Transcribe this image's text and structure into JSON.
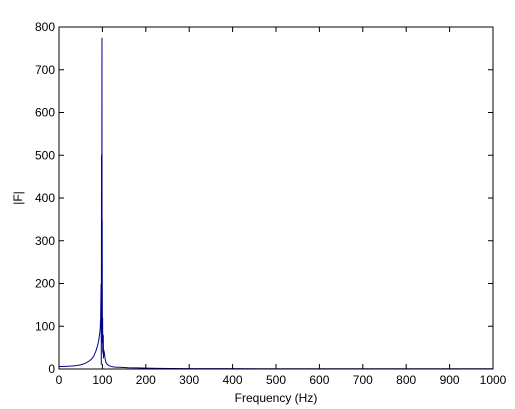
{
  "chart_data": {
    "type": "line",
    "title": "",
    "xlabel": "Frequency (Hz)",
    "ylabel": "|F|",
    "xlim": [
      0,
      1000
    ],
    "ylim": [
      0,
      800
    ],
    "x_ticks": [
      0,
      100,
      200,
      300,
      400,
      500,
      600,
      700,
      800,
      900,
      1000
    ],
    "y_ticks": [
      0,
      100,
      200,
      300,
      400,
      500,
      600,
      700,
      800
    ],
    "x_tick_labels": [
      "0",
      "100",
      "200",
      "300",
      "400",
      "500",
      "600",
      "700",
      "800",
      "900",
      "1000"
    ],
    "y_tick_labels": [
      "0",
      "100",
      "200",
      "300",
      "400",
      "500",
      "600",
      "700",
      "800"
    ],
    "grid": false,
    "legend": "none",
    "colors": {
      "line": "#00008b",
      "axes": "#000000",
      "background": "#ffffff"
    },
    "series": [
      {
        "x": [
          0,
          10,
          20,
          30,
          40,
          50,
          60,
          70,
          75,
          80,
          85,
          88,
          90,
          92,
          94,
          95,
          96,
          97,
          97.5,
          98,
          98.5,
          99,
          99.2,
          99.5,
          100,
          100.5,
          100.8,
          101,
          101.5,
          102,
          102.5,
          103,
          104,
          105,
          106,
          108,
          110,
          112,
          115,
          120,
          125,
          130,
          140,
          150,
          160,
          180,
          200,
          230,
          260,
          300,
          400,
          500,
          600,
          700,
          800,
          900,
          1000
        ],
        "y": [
          6,
          6,
          6.5,
          7,
          8,
          10,
          13,
          19,
          23,
          30,
          42,
          52,
          60,
          70,
          85,
          95,
          120,
          200,
          10,
          500,
          250,
          775,
          100,
          350,
          60,
          120,
          40,
          50,
          35,
          80,
          25,
          45,
          40,
          35,
          25,
          16,
          12,
          10,
          8,
          6,
          5,
          4.5,
          4,
          3.5,
          3,
          2.5,
          2,
          1.5,
          1.2,
          1,
          0.8,
          0.6,
          0.5,
          0.5,
          0.5,
          0.5,
          0.5
        ]
      }
    ]
  }
}
